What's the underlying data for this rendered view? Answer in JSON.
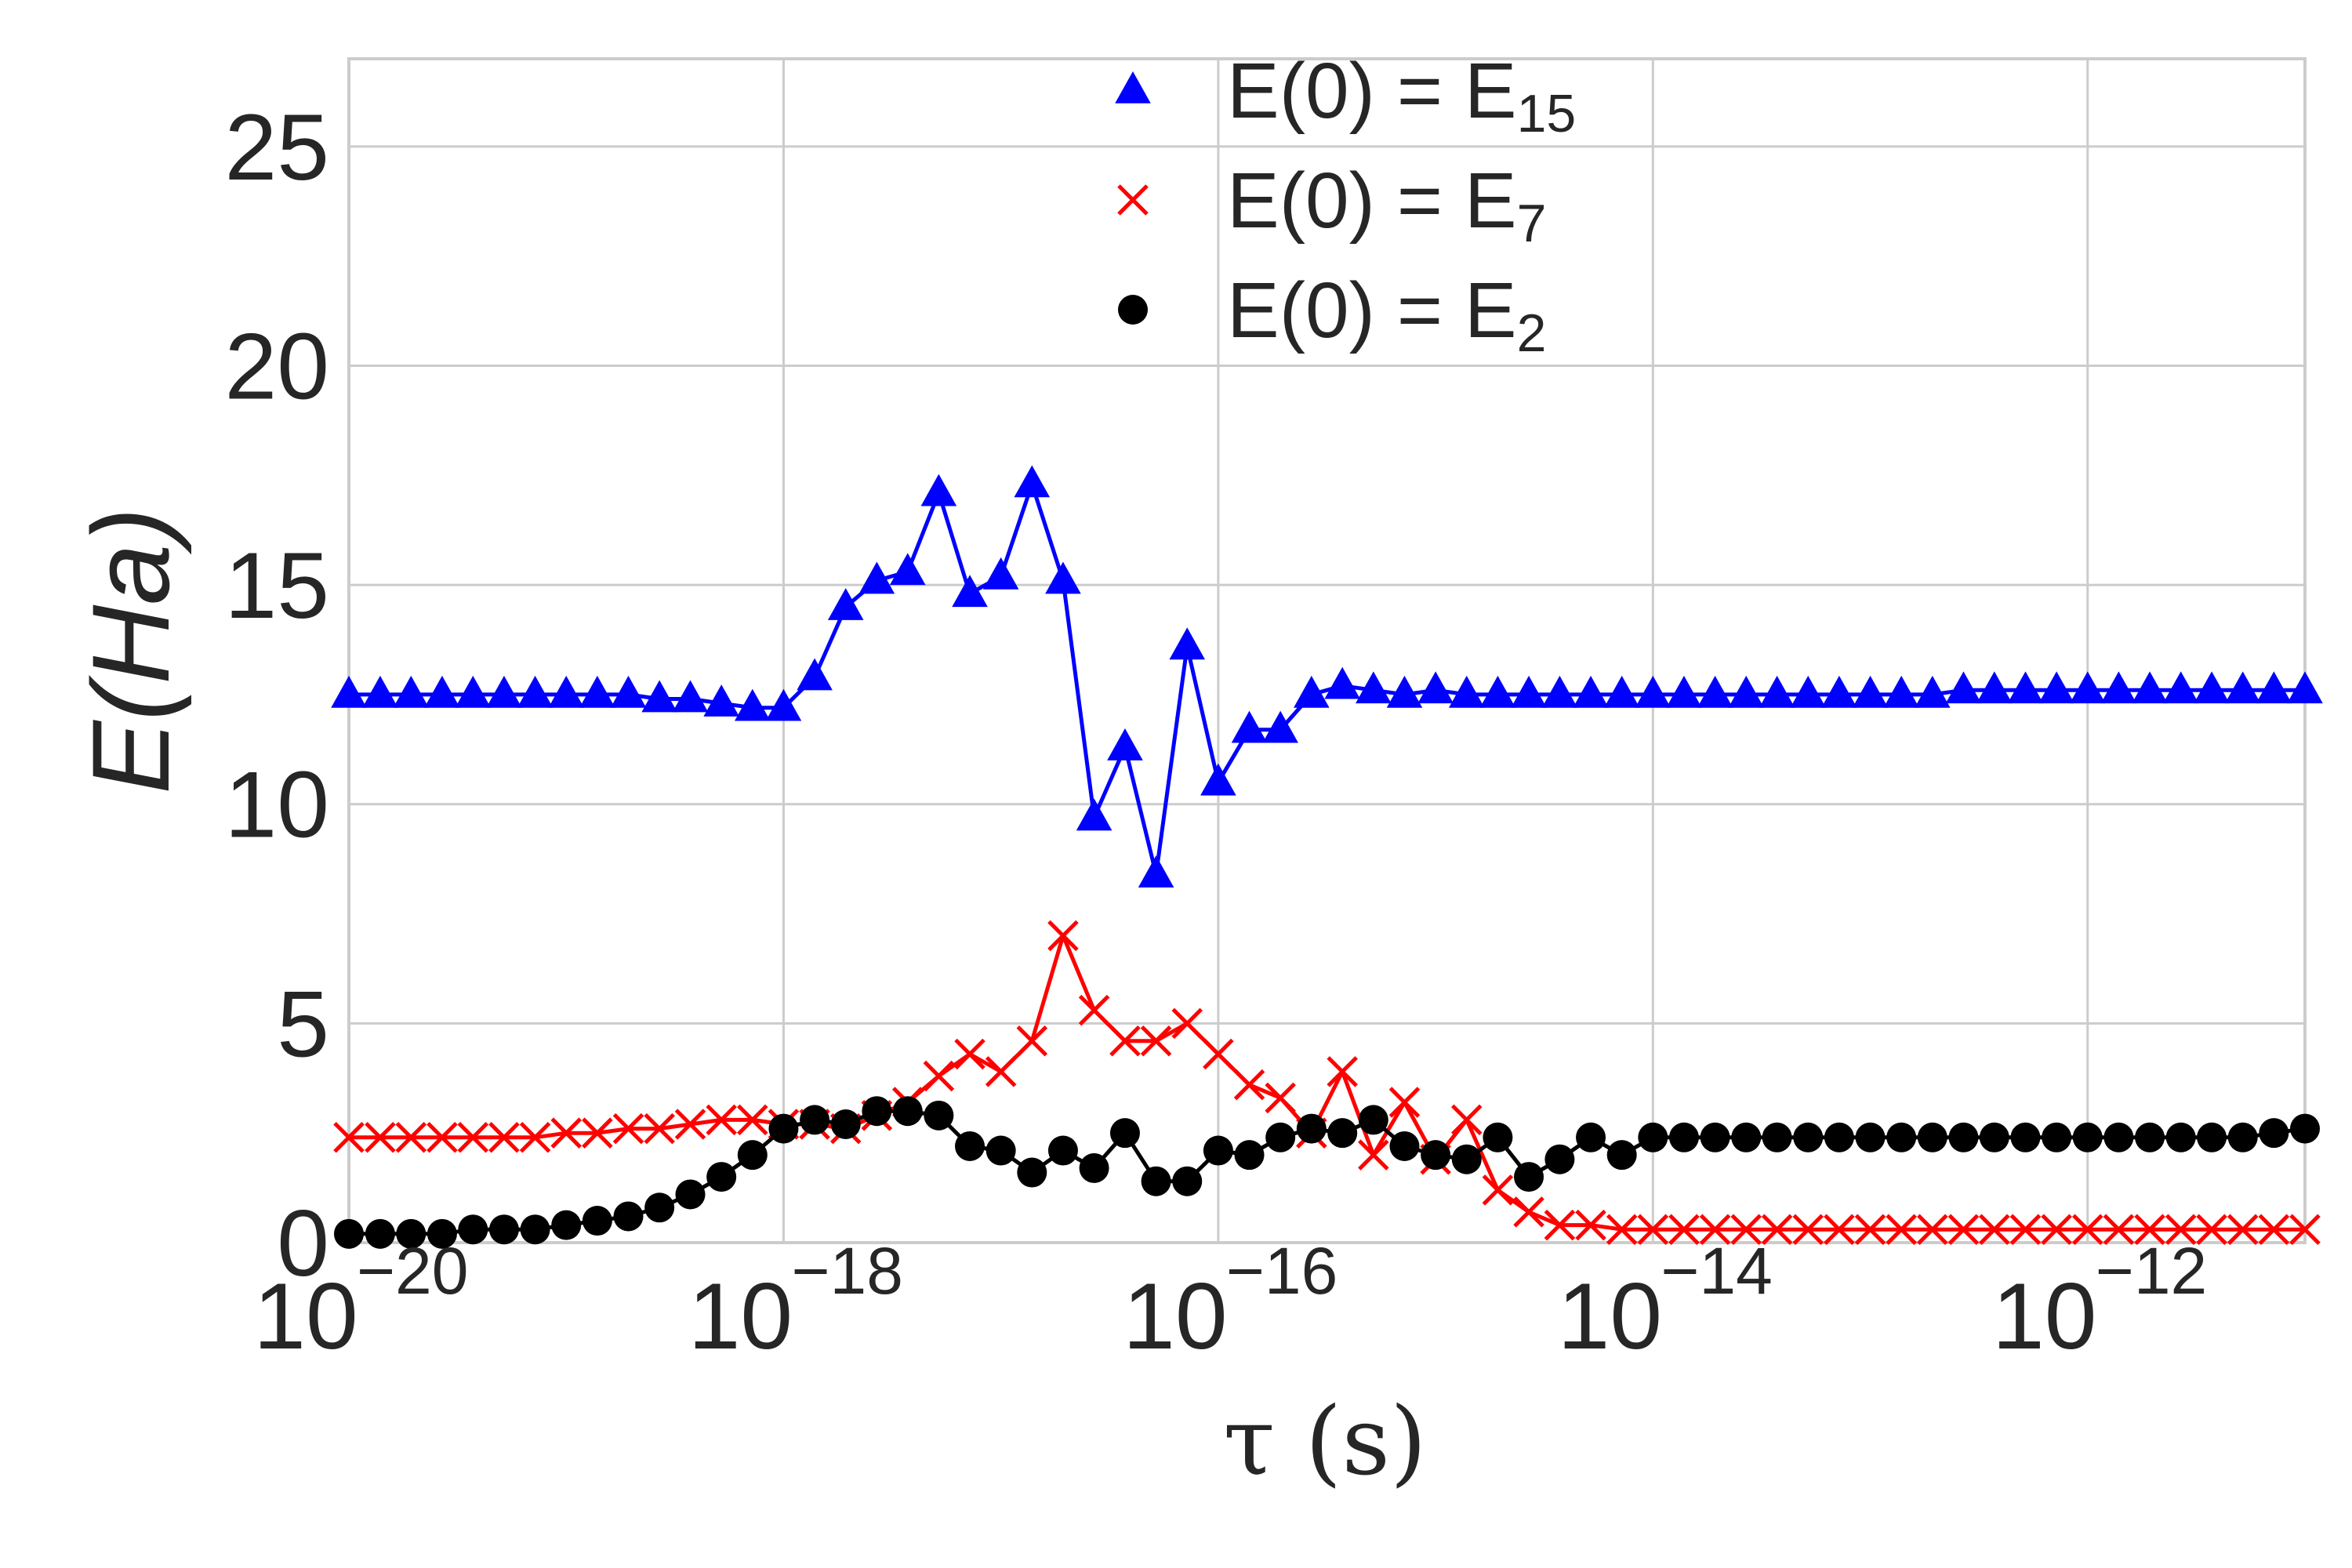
{
  "chart_data": {
    "type": "line",
    "xscale": "log",
    "xlim": [
      1e-20,
      1e-11
    ],
    "ylim": [
      0,
      27
    ],
    "grid": true,
    "legend_placement": "top-center",
    "xlabel": "τ (s)",
    "ylabel": "E(Ha)",
    "x_ticks": [
      {
        "base": "10",
        "exp": "−20",
        "value": 1e-20
      },
      {
        "base": "10",
        "exp": "−18",
        "value": 1e-18
      },
      {
        "base": "10",
        "exp": "−16",
        "value": 1e-16
      },
      {
        "base": "10",
        "exp": "−14",
        "value": 1e-14
      },
      {
        "base": "10",
        "exp": "−12",
        "value": 1e-12
      }
    ],
    "y_ticks": [
      "0",
      "5",
      "10",
      "15",
      "20",
      "25"
    ],
    "x_exponents": [
      -20.0,
      -19.856,
      -19.714,
      -19.571,
      -19.429,
      -19.286,
      -19.143,
      -19.0,
      -18.857,
      -18.714,
      -18.571,
      -18.429,
      -18.286,
      -18.143,
      -18.0,
      -17.857,
      -17.714,
      -17.571,
      -17.429,
      -17.286,
      -17.143,
      -17.0,
      -16.857,
      -16.714,
      -16.571,
      -16.429,
      -16.286,
      -16.143,
      -16.0,
      -15.857,
      -15.714,
      -15.571,
      -15.429,
      -15.286,
      -15.143,
      -15.0,
      -14.857,
      -14.714,
      -14.571,
      -14.429,
      -14.286,
      -14.143,
      -14.0,
      -13.857,
      -13.714,
      -13.571,
      -13.429,
      -13.286,
      -13.143,
      -13.0,
      -12.857,
      -12.714,
      -12.571,
      -12.429,
      -12.286,
      -12.143,
      -12.0,
      -11.857,
      -11.714,
      -11.571,
      -11.429,
      -11.286,
      -11.143,
      -11.0
    ],
    "series": [
      {
        "name": "E(0) = E15",
        "label_main": "E(0) = E",
        "label_sub": "15",
        "color": "#0000ff",
        "marker": "triangle",
        "values": [
          12.5,
          12.5,
          12.5,
          12.5,
          12.5,
          12.5,
          12.5,
          12.5,
          12.5,
          12.5,
          12.4,
          12.4,
          12.3,
          12.2,
          12.2,
          12.9,
          14.5,
          15.1,
          15.3,
          17.1,
          14.8,
          15.2,
          17.3,
          15.1,
          9.7,
          11.3,
          8.4,
          13.6,
          10.5,
          11.7,
          11.7,
          12.5,
          12.7,
          12.6,
          12.5,
          12.6,
          12.5,
          12.5,
          12.5,
          12.5,
          12.5,
          12.5,
          12.5,
          12.5,
          12.5,
          12.5,
          12.5,
          12.5,
          12.5,
          12.5,
          12.5,
          12.5,
          12.6,
          12.6,
          12.6,
          12.6,
          12.6,
          12.6,
          12.6,
          12.6,
          12.6,
          12.6,
          12.6,
          12.6
        ]
      },
      {
        "name": "E(0) = E7",
        "label_main": "E(0) = E",
        "label_sub": "7",
        "color": "#ff0000",
        "marker": "x",
        "values": [
          2.4,
          2.4,
          2.4,
          2.4,
          2.4,
          2.4,
          2.4,
          2.5,
          2.5,
          2.6,
          2.6,
          2.7,
          2.8,
          2.8,
          2.7,
          2.7,
          2.6,
          2.9,
          3.2,
          3.8,
          4.3,
          3.9,
          4.6,
          7.0,
          5.3,
          4.6,
          4.6,
          5.0,
          4.3,
          3.6,
          3.3,
          2.5,
          3.9,
          2.0,
          3.2,
          1.9,
          2.8,
          1.2,
          0.7,
          0.4,
          0.4,
          0.3,
          0.3,
          0.3,
          0.3,
          0.3,
          0.3,
          0.3,
          0.3,
          0.3,
          0.3,
          0.3,
          0.3,
          0.3,
          0.3,
          0.3,
          0.3,
          0.3,
          0.3,
          0.3,
          0.3,
          0.3,
          0.3,
          0.3
        ]
      },
      {
        "name": "E(0) = E2",
        "label_main": "E(0) = E",
        "label_sub": "2",
        "color": "#000000",
        "marker": "circle",
        "values": [
          0.2,
          0.2,
          0.2,
          0.2,
          0.3,
          0.3,
          0.3,
          0.4,
          0.5,
          0.6,
          0.8,
          1.1,
          1.5,
          2.0,
          2.6,
          2.8,
          2.7,
          3.0,
          3.0,
          2.9,
          2.2,
          2.1,
          1.6,
          2.1,
          1.7,
          2.5,
          1.4,
          1.4,
          2.1,
          2.0,
          2.4,
          2.6,
          2.5,
          2.8,
          2.2,
          2.0,
          1.9,
          2.4,
          1.5,
          1.9,
          2.4,
          2.0,
          2.4,
          2.4,
          2.4,
          2.4,
          2.4,
          2.4,
          2.4,
          2.4,
          2.4,
          2.4,
          2.4,
          2.4,
          2.4,
          2.4,
          2.4,
          2.4,
          2.4,
          2.4,
          2.4,
          2.4,
          2.5,
          2.6
        ]
      }
    ]
  }
}
